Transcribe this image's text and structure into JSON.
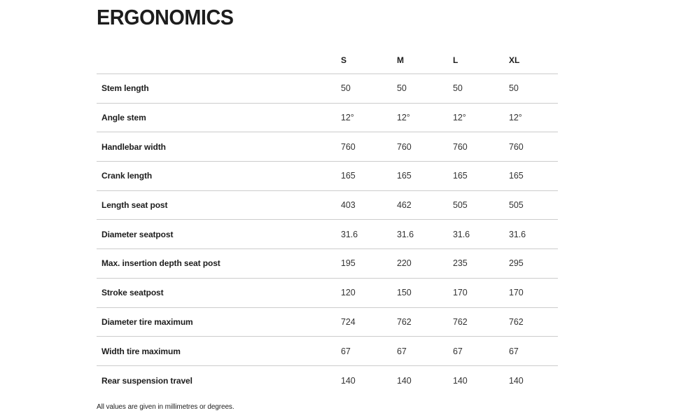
{
  "page": {
    "title": "ERGONOMICS",
    "footnote": "All values are given in millimetres or degrees."
  },
  "table": {
    "columns": [
      "S",
      "M",
      "L",
      "XL"
    ],
    "rows": [
      {
        "label": "Stem length",
        "values": [
          "50",
          "50",
          "50",
          "50"
        ]
      },
      {
        "label": "Angle stem",
        "values": [
          "12°",
          "12°",
          "12°",
          "12°"
        ]
      },
      {
        "label": "Handlebar width",
        "values": [
          "760",
          "760",
          "760",
          "760"
        ]
      },
      {
        "label": "Crank length",
        "values": [
          "165",
          "165",
          "165",
          "165"
        ]
      },
      {
        "label": "Length seat post",
        "values": [
          "403",
          "462",
          "505",
          "505"
        ]
      },
      {
        "label": "Diameter seatpost",
        "values": [
          "31.6",
          "31.6",
          "31.6",
          "31.6"
        ]
      },
      {
        "label": "Max. insertion depth seat post",
        "values": [
          "195",
          "220",
          "235",
          "295"
        ]
      },
      {
        "label": "Stroke seatpost",
        "values": [
          "120",
          "150",
          "170",
          "170"
        ]
      },
      {
        "label": "Diameter tire maximum",
        "values": [
          "724",
          "762",
          "762",
          "762"
        ]
      },
      {
        "label": "Width tire maximum",
        "values": [
          "67",
          "67",
          "67",
          "67"
        ]
      },
      {
        "label": "Rear suspension travel",
        "values": [
          "140",
          "140",
          "140",
          "140"
        ]
      }
    ]
  },
  "colors": {
    "text": "#1d1d1d",
    "value_text": "#333333",
    "divider": "#cccccc",
    "background": "#ffffff"
  }
}
